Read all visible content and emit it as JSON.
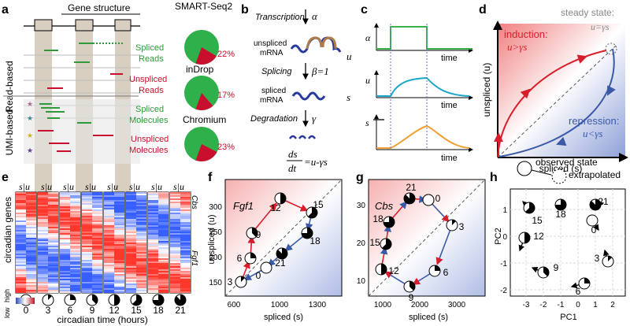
{
  "colors": {
    "green": "#2e9a3a",
    "red": "#c8102e",
    "blue": "#3a5aa8",
    "orange": "#f0a030",
    "cyan": "#1aa6c8",
    "pieGreen": "#2fb04a"
  },
  "panels": {
    "a": "a",
    "b": "b",
    "c": "c",
    "d": "d",
    "e": "e",
    "f": "f",
    "g": "g",
    "h": "h"
  },
  "panel_a": {
    "gene_structure": "Gene structure",
    "read_based": "Read-based",
    "umi_based": "UMI-based",
    "spliced_reads": [
      "Spliced",
      "Reads"
    ],
    "unspliced_reads": [
      "Unspliced",
      "Reads"
    ],
    "spliced_molecules": [
      "Spliced",
      "Molecules"
    ],
    "unspliced_molecules": [
      "Unspliced",
      "Molecules"
    ],
    "protocols": [
      {
        "name": "SMART-Seq2",
        "unspliced_pct": 22,
        "label": "22%"
      },
      {
        "name": "inDrop",
        "unspliced_pct": 17,
        "label": "17%"
      },
      {
        "name": "Chromium",
        "unspliced_pct": 23,
        "label": "23%"
      }
    ]
  },
  "panel_b": {
    "transcription": "Transcription",
    "alpha": "α",
    "unspliced1": "unspliced",
    "unspliced2": "mRNA",
    "u": "u",
    "splicing": "Splicing",
    "beta": "β=1",
    "spliced1": "spliced",
    "spliced2": "mRNA",
    "s": "s",
    "degradation": "Degradation",
    "gamma": "γ",
    "eq_num": "ds",
    "eq_den": "dt",
    "eq_rhs": "=u-γs"
  },
  "panel_c": {
    "alpha": "α",
    "u": "u",
    "s": "s",
    "time": "time"
  },
  "panel_d": {
    "steady": "steady state:",
    "steady_eq": "u=γs",
    "induction": "induction:",
    "induction_eq": "u>γs",
    "repression": "repression:",
    "repression_eq": "u<γs",
    "ylabel": "unspliced (u)",
    "xlabel": "spliced (s)"
  },
  "panel_e": {
    "ylabel": "circadian genes",
    "low": "low",
    "high": "high",
    "su": "s|u",
    "gene1": "Cbs",
    "gene2": "Fgf1",
    "times": [
      "0",
      "3",
      "6",
      "9",
      "12",
      "15",
      "18",
      "21"
    ],
    "xlabel": "circadian time (hours)"
  },
  "panel_f": {
    "gene": "Fgf1",
    "ylabel": "unspliced (u)",
    "xlabel": "spliced (s)",
    "xticks": [
      "600",
      "1000",
      "1300"
    ],
    "yticks": [
      "150",
      "200",
      "250",
      "300"
    ],
    "points": [
      "3",
      "6",
      "9",
      "12",
      "15",
      "18",
      "21",
      "0"
    ]
  },
  "panel_g": {
    "gene": "Cbs",
    "xlabel": "spliced (s)",
    "xticks": [
      "1000",
      "2000",
      "3000"
    ],
    "yticks": [
      "10",
      "20",
      "30"
    ],
    "points": [
      "21",
      "18",
      "15",
      "12",
      "9",
      "6",
      "3",
      "0"
    ]
  },
  "panel_h": {
    "observed": "observed state",
    "extrapolated": "extrapolated",
    "ylabel": "PC2",
    "xlabel": "PC1",
    "xticks": [
      "-3",
      "-2",
      "-1",
      "0",
      "1",
      "2",
      "3"
    ],
    "yticks": [
      "1",
      "0",
      "-1",
      "-2"
    ],
    "points": [
      "15",
      "18",
      "21",
      "0",
      "12",
      "9",
      "3",
      "6"
    ]
  }
}
